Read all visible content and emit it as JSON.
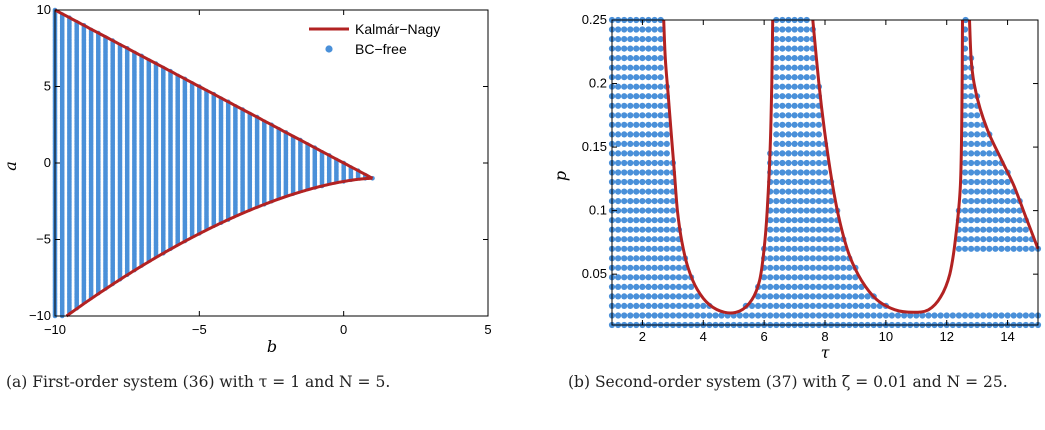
{
  "colors": {
    "curve": "#b22222",
    "dots": "#4a90d9"
  },
  "chart_data": [
    {
      "type": "scatter",
      "xlabel": "b",
      "ylabel": "a",
      "xlim": [
        -10,
        5
      ],
      "ylim": [
        -10,
        10
      ],
      "xticks": [
        -10,
        -5,
        0,
        5
      ],
      "yticks": [
        -10,
        -5,
        0,
        5,
        10
      ],
      "legend": {
        "placement": "top-right",
        "entries": [
          "Kalmár−Nagy",
          "BC−free"
        ]
      },
      "boundary": {
        "name": "Kalmár−Nagy",
        "vertex": [
          1,
          -1
        ],
        "top_end": [
          -10,
          10
        ],
        "bottom_end": [
          -9.6,
          -10
        ]
      },
      "region": {
        "name": "BC−free",
        "b_step": 0.25,
        "a_step": 0.1,
        "b_range": [
          -10,
          1
        ]
      },
      "caption": "(a) First-order system (36) with τ = 1 and N = 5."
    },
    {
      "type": "scatter",
      "xlabel": "τ",
      "ylabel": "p",
      "xlim": [
        1,
        15
      ],
      "ylim": [
        0.01,
        0.25
      ],
      "xticks": [
        2,
        4,
        6,
        8,
        10,
        12,
        14
      ],
      "yticks": [
        0.05,
        0.1,
        0.15,
        0.2,
        0.25
      ],
      "curve": {
        "name": "Kalmár−Nagy",
        "branches": [
          [
            [
              2.7,
              0.25
            ],
            [
              2.75,
              0.22
            ],
            [
              2.85,
              0.19
            ],
            [
              2.95,
              0.16
            ],
            [
              3.05,
              0.13
            ],
            [
              3.15,
              0.1
            ],
            [
              3.3,
              0.075
            ],
            [
              3.5,
              0.055
            ],
            [
              3.8,
              0.038
            ],
            [
              4.2,
              0.026
            ],
            [
              4.7,
              0.02
            ],
            [
              5.2,
              0.021
            ],
            [
              5.6,
              0.03
            ],
            [
              5.85,
              0.045
            ],
            [
              6.0,
              0.07
            ],
            [
              6.1,
              0.1
            ],
            [
              6.2,
              0.15
            ],
            [
              6.25,
              0.2
            ],
            [
              6.28,
              0.25
            ]
          ],
          [
            [
              7.6,
              0.25
            ],
            [
              7.8,
              0.2
            ],
            [
              8.0,
              0.16
            ],
            [
              8.25,
              0.12
            ],
            [
              8.5,
              0.09
            ],
            [
              8.8,
              0.065
            ],
            [
              9.2,
              0.045
            ],
            [
              9.7,
              0.03
            ],
            [
              10.3,
              0.022
            ],
            [
              10.9,
              0.02
            ],
            [
              11.4,
              0.022
            ],
            [
              11.8,
              0.032
            ],
            [
              12.1,
              0.05
            ],
            [
              12.3,
              0.08
            ],
            [
              12.45,
              0.12
            ],
            [
              12.5,
              0.18
            ],
            [
              12.52,
              0.25
            ]
          ],
          [
            [
              12.75,
              0.25
            ],
            [
              12.8,
              0.22
            ],
            [
              12.9,
              0.2
            ],
            [
              13.1,
              0.18
            ],
            [
              13.4,
              0.16
            ],
            [
              13.8,
              0.14
            ],
            [
              14.2,
              0.12
            ],
            [
              14.6,
              0.095
            ],
            [
              15.0,
              0.07
            ]
          ]
        ]
      },
      "region": {
        "name": "BC−free",
        "tau_step": 0.2,
        "p_step": 0.0075
      },
      "caption": "(b) Second-order system (37) with ζ = 0.01 and N = 25."
    }
  ]
}
